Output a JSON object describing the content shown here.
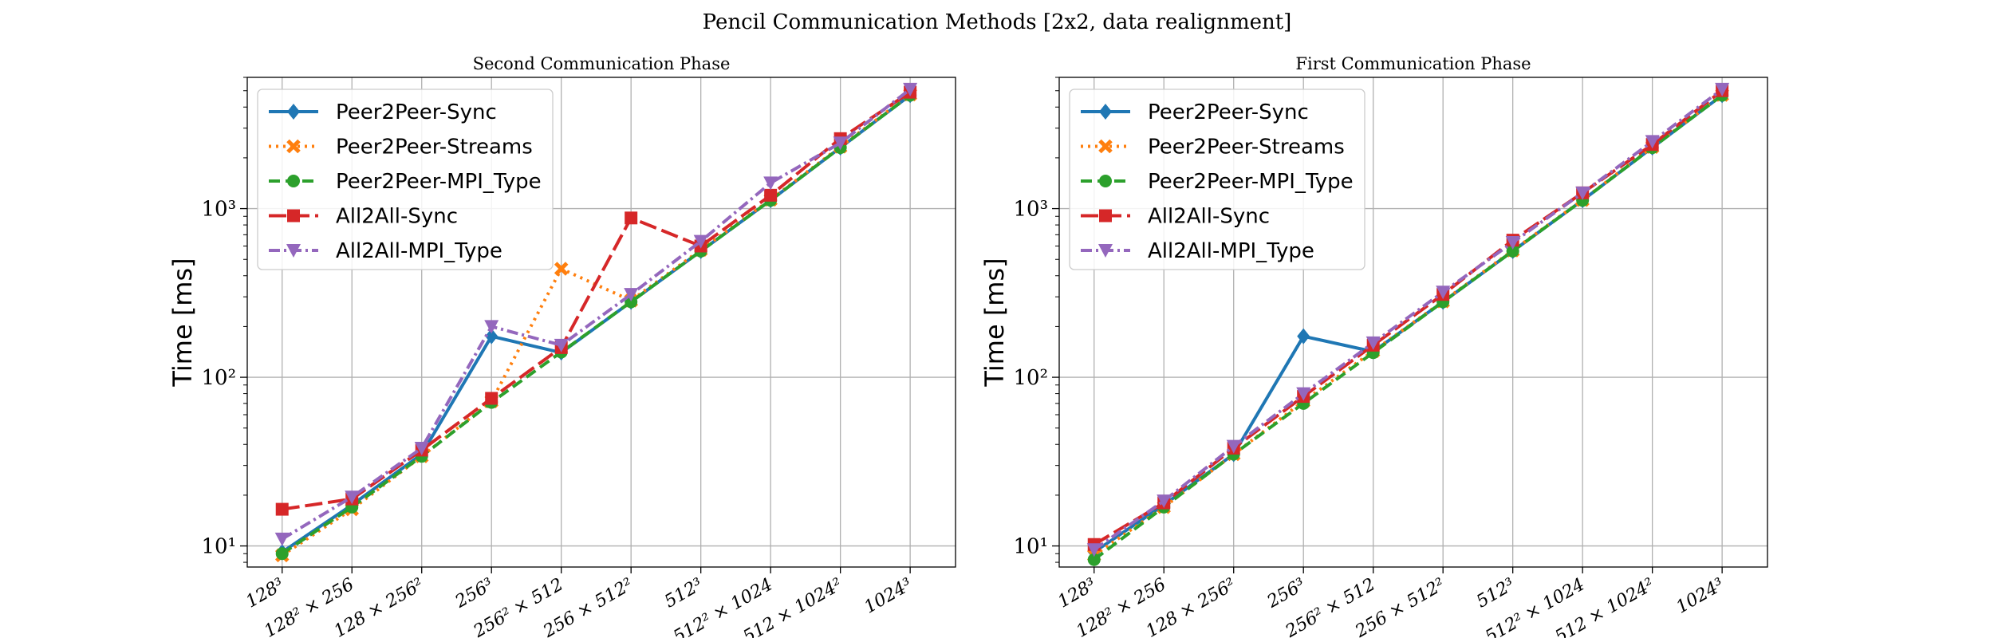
{
  "figure": {
    "suptitle": "Pencil Communication Methods [2x2, data realignment]"
  },
  "styles": {
    "Peer2Peer-Sync": {
      "color": "#1f77b4",
      "dash": "",
      "marker": "diamond"
    },
    "Peer2Peer-Streams": {
      "color": "#ff7f0e",
      "dash": "3 6",
      "marker": "x"
    },
    "Peer2Peer-MPI_Type": {
      "color": "#2ca02c",
      "dash": "14 7",
      "marker": "circle"
    },
    "All2All-Sync": {
      "color": "#d62728",
      "dash": "22 7",
      "marker": "square"
    },
    "All2All-MPI_Type": {
      "color": "#9467bd",
      "dash": "14 5 3 5",
      "marker": "triangle-down"
    }
  },
  "chart_data": [
    {
      "type": "line",
      "title": "Second Communication Phase",
      "xlabel": "",
      "ylabel": "Time [ms]",
      "yscale": "log",
      "ylim": [
        7.5,
        6000
      ],
      "yticks": [
        {
          "value": 10,
          "label": "10¹"
        },
        {
          "value": 100,
          "label": "10²"
        },
        {
          "value": 1000,
          "label": "10³"
        }
      ],
      "grid": true,
      "legend_position": "top-left",
      "categories": [
        "128³",
        "128² × 256",
        "128 × 256²",
        "256³",
        "256² × 512",
        "256 × 512²",
        "512³",
        "512² × 1024",
        "512 × 1024²",
        "1024³"
      ],
      "series": [
        {
          "name": "Peer2Peer-Sync",
          "values": [
            9.2,
            17.5,
            35,
            175,
            140,
            280,
            560,
            1120,
            2300,
            4700
          ]
        },
        {
          "name": "Peer2Peer-Streams",
          "values": [
            8.8,
            16.5,
            34,
            72,
            440,
            285,
            570,
            1130,
            2330,
            4750
          ]
        },
        {
          "name": "Peer2Peer-MPI_Type",
          "values": [
            9.0,
            17.0,
            34,
            71,
            141,
            280,
            560,
            1120,
            2300,
            4700
          ]
        },
        {
          "name": "All2All-Sync",
          "values": [
            16.5,
            19.0,
            37,
            75,
            150,
            880,
            600,
            1200,
            2600,
            4900
          ]
        },
        {
          "name": "All2All-MPI_Type",
          "values": [
            11.0,
            19.5,
            38,
            200,
            155,
            310,
            640,
            1420,
            2450,
            5100
          ]
        }
      ]
    },
    {
      "type": "line",
      "title": "First Communication Phase",
      "xlabel": "",
      "ylabel": "Time [ms]",
      "yscale": "log",
      "ylim": [
        7.5,
        6000
      ],
      "yticks": [
        {
          "value": 10,
          "label": "10¹"
        },
        {
          "value": 100,
          "label": "10²"
        },
        {
          "value": 1000,
          "label": "10³"
        }
      ],
      "grid": true,
      "legend_position": "top-left",
      "categories": [
        "128³",
        "128² × 256",
        "128 × 256²",
        "256³",
        "256² × 512",
        "256 × 512²",
        "512³",
        "512² × 1024",
        "512 × 1024²",
        "1024³"
      ],
      "series": [
        {
          "name": "Peer2Peer-Sync",
          "values": [
            9.2,
            17.5,
            35,
            175,
            142,
            280,
            560,
            1120,
            2300,
            4700
          ]
        },
        {
          "name": "Peer2Peer-Streams",
          "values": [
            8.8,
            17.0,
            35,
            72,
            143,
            282,
            565,
            1125,
            2320,
            4720
          ]
        },
        {
          "name": "Peer2Peer-MPI_Type",
          "values": [
            8.3,
            17.0,
            35,
            70,
            140,
            280,
            560,
            1120,
            2300,
            4700
          ]
        },
        {
          "name": "All2All-Sync",
          "values": [
            10.2,
            18.0,
            38,
            77,
            155,
            310,
            650,
            1240,
            2400,
            5000
          ]
        },
        {
          "name": "All2All-MPI_Type",
          "values": [
            9.5,
            18.5,
            39,
            80,
            160,
            320,
            630,
            1240,
            2500,
            5100
          ]
        }
      ]
    }
  ]
}
